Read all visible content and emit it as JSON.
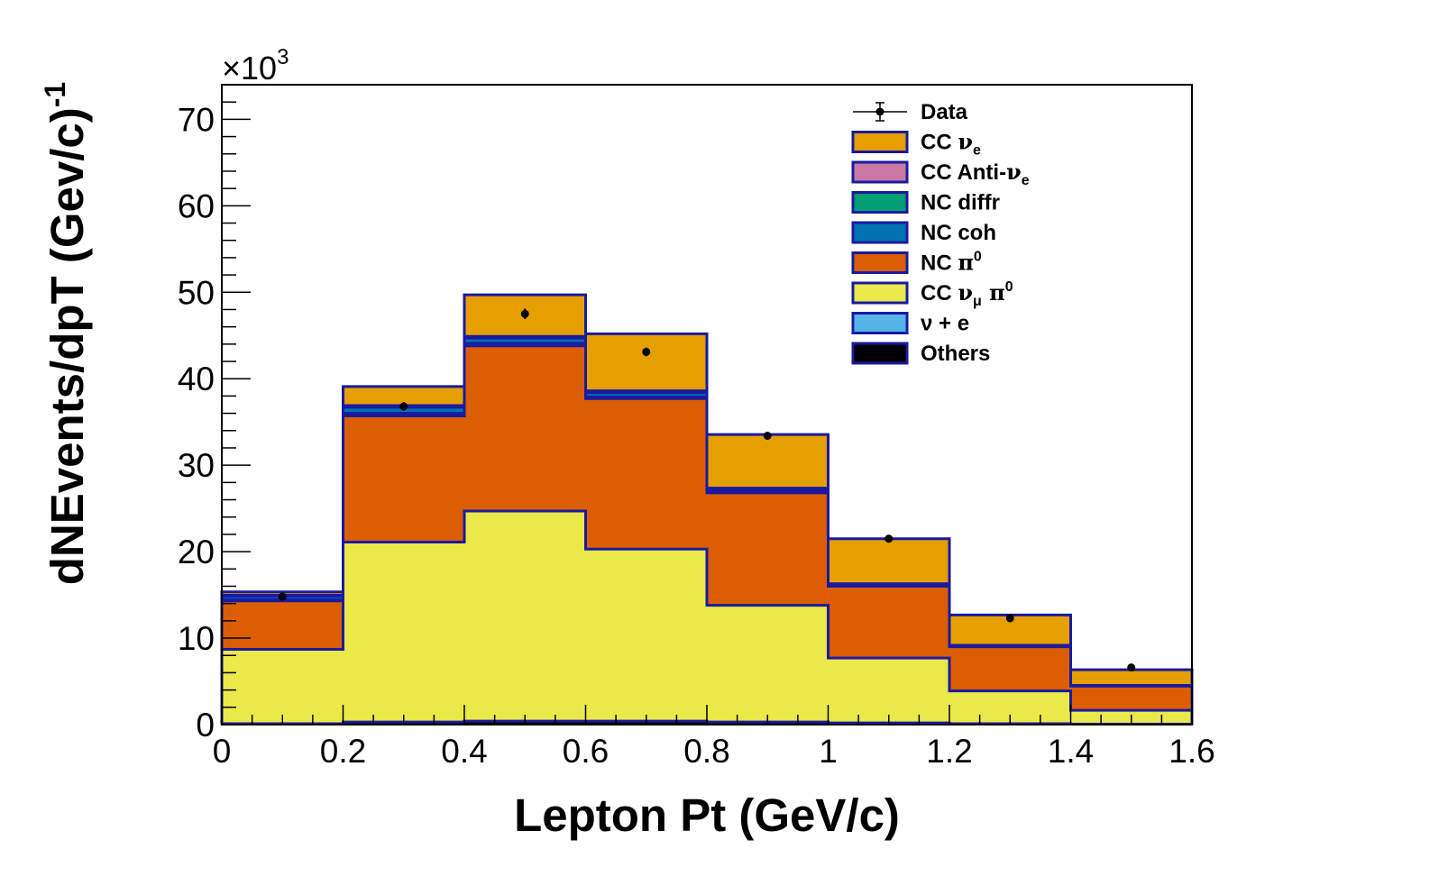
{
  "chart_data": {
    "type": "bar",
    "subtype": "stacked-histogram",
    "xlabel": "Lepton Pt (GeV/c)",
    "ylabel": "dNEvents/dpT (Gev/c)",
    "ylabel_superscript": "-1",
    "y_multiplier": {
      "base": "×10",
      "exponent": "3"
    },
    "xlim": [
      0,
      1.6
    ],
    "ylim": [
      0,
      74
    ],
    "bin_edges": [
      0,
      0.2,
      0.4,
      0.6,
      0.8,
      1.0,
      1.2,
      1.4,
      1.6
    ],
    "x_ticks": [
      {
        "value": 0,
        "label": "0"
      },
      {
        "value": 0.2,
        "label": "0.2"
      },
      {
        "value": 0.4,
        "label": "0.4"
      },
      {
        "value": 0.6,
        "label": "0.6"
      },
      {
        "value": 0.8,
        "label": "0.8"
      },
      {
        "value": 1.0,
        "label": "1"
      },
      {
        "value": 1.2,
        "label": "1.2"
      },
      {
        "value": 1.4,
        "label": "1.4"
      },
      {
        "value": 1.6,
        "label": "1.6"
      }
    ],
    "y_ticks": [
      {
        "value": 0,
        "label": "0"
      },
      {
        "value": 10,
        "label": "10"
      },
      {
        "value": 20,
        "label": "20"
      },
      {
        "value": 30,
        "label": "30"
      },
      {
        "value": 40,
        "label": "40"
      },
      {
        "value": 50,
        "label": "50"
      },
      {
        "value": 60,
        "label": "60"
      },
      {
        "value": 70,
        "label": "70"
      }
    ],
    "series": [
      {
        "name": "Others",
        "label_parts": [
          [
            "Others",
            ""
          ]
        ],
        "color": "#000000",
        "values": [
          0.1,
          0.3,
          0.4,
          0.4,
          0.3,
          0.2,
          0.1,
          0.05
        ]
      },
      {
        "name": "CC νμ π0",
        "label_parts": [
          [
            "CC ",
            ""
          ],
          [
            "ν",
            ""
          ],
          [
            "μ",
            "sub"
          ],
          [
            " π",
            ""
          ],
          [
            "0",
            "sup"
          ]
        ],
        "color": "#ebe84a",
        "values": [
          8.6,
          20.8,
          24.3,
          19.9,
          13.5,
          7.5,
          3.8,
          1.6
        ]
      },
      {
        "name": "NC π0",
        "label_parts": [
          [
            "NC ",
            ""
          ],
          [
            "π",
            ""
          ],
          [
            "0",
            "sup"
          ]
        ],
        "color": "#db5e04",
        "values": [
          5.6,
          14.6,
          19.1,
          17.4,
          13.0,
          8.3,
          5.1,
          2.8
        ]
      },
      {
        "name": "ν + e",
        "label_parts": [
          [
            "ν + e",
            ""
          ]
        ],
        "color": "#56b4e9",
        "values": [
          0.15,
          0.3,
          0.3,
          0.2,
          0.15,
          0.05,
          0.05,
          0.02
        ]
      },
      {
        "name": "NC coh",
        "label_parts": [
          [
            "NC coh",
            ""
          ]
        ],
        "color": "#0072b2",
        "values": [
          0.4,
          0.7,
          0.6,
          0.5,
          0.3,
          0.2,
          0.1,
          0.05
        ]
      },
      {
        "name": "NC diffr",
        "label_parts": [
          [
            "NC diffr",
            ""
          ]
        ],
        "color": "#009e73",
        "values": [
          0.05,
          0.1,
          0.1,
          0.1,
          0.05,
          0.02,
          0.01,
          0.01
        ]
      },
      {
        "name": "CC Anti-νe",
        "label_parts": [
          [
            "CC Anti-",
            ""
          ],
          [
            "ν",
            ""
          ],
          [
            "e",
            "sub"
          ]
        ],
        "color": "#cc79a7",
        "values": [
          0.05,
          0.1,
          0.1,
          0.1,
          0.05,
          0.02,
          0.01,
          0.01
        ]
      },
      {
        "name": "CC νe",
        "label_parts": [
          [
            "CC ",
            ""
          ],
          [
            "ν",
            ""
          ],
          [
            "e",
            "sub"
          ]
        ],
        "color": "#e69f00",
        "values": [
          0.4,
          2.2,
          4.8,
          6.6,
          6.2,
          5.2,
          3.5,
          1.8
        ]
      }
    ],
    "data_points": {
      "name": "Data",
      "label_parts": [
        [
          "Data",
          ""
        ]
      ],
      "x": [
        0.1,
        0.3,
        0.5,
        0.7,
        0.9,
        1.1,
        1.3,
        1.5
      ],
      "y": [
        14.8,
        36.8,
        47.5,
        43.1,
        33.4,
        21.5,
        12.3,
        6.6
      ],
      "y_err": [
        0.3,
        0.5,
        0.6,
        0.5,
        0.4,
        0.3,
        0.2,
        0.2
      ]
    },
    "legend_order": [
      "Data",
      "CC νe",
      "CC Anti-νe",
      "NC diffr",
      "NC coh",
      "NC π0",
      "CC νμ π0",
      "ν + e",
      "Others"
    ],
    "legend_position": "top-right",
    "grid": false
  }
}
